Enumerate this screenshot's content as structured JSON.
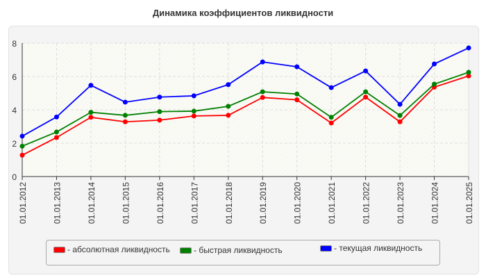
{
  "chart_data": {
    "type": "line",
    "title": "Динамика коэффициентов ликвидности",
    "categories": [
      "01.01.2012",
      "01.01.2013",
      "01.01.2014",
      "01.01.2015",
      "01.01.2016",
      "01.01.2017",
      "01.01.2018",
      "01.01.2019",
      "01.01.2020",
      "01.01.2021",
      "01.01.2022",
      "01.01.2023",
      "01.01.2024",
      "01.01.2025"
    ],
    "ylim": [
      0,
      8
    ],
    "yticks": [
      0,
      2,
      4,
      6,
      8
    ],
    "grid": true,
    "legend_position": "bottom",
    "series": [
      {
        "name": "- абсолютная ликвидность",
        "color": "#ff0000",
        "values": [
          1.28,
          2.34,
          3.55,
          3.28,
          3.38,
          3.63,
          3.67,
          4.74,
          4.6,
          3.21,
          4.76,
          3.28,
          5.36,
          6.03
        ]
      },
      {
        "name": "- быстрая ликвидность",
        "color": "#008000",
        "values": [
          1.82,
          2.67,
          3.85,
          3.67,
          3.89,
          3.92,
          4.21,
          5.08,
          4.95,
          3.55,
          5.08,
          3.66,
          5.54,
          6.25
        ]
      },
      {
        "name": "- текущая ликвидность",
        "color": "#0000ff",
        "values": [
          2.42,
          3.57,
          5.47,
          4.46,
          4.76,
          4.84,
          5.51,
          6.87,
          6.58,
          5.33,
          6.33,
          4.33,
          6.75,
          7.71
        ]
      }
    ]
  }
}
